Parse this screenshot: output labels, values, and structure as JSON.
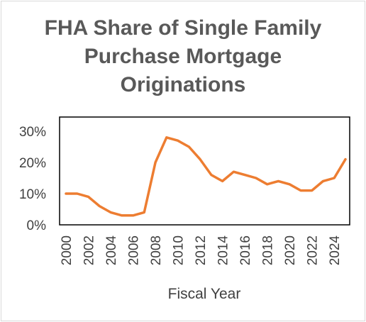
{
  "chart_data": {
    "type": "line",
    "title_lines": [
      "FHA Share of Single Family",
      "Purchase Mortgage",
      "Originations"
    ],
    "xlabel": "Fiscal Year",
    "ylabel": "",
    "x": [
      2000,
      2001,
      2002,
      2003,
      2004,
      2005,
      2006,
      2007,
      2008,
      2009,
      2010,
      2011,
      2012,
      2013,
      2014,
      2015,
      2016,
      2017,
      2018,
      2019,
      2020,
      2021,
      2022,
      2023,
      2024,
      2025
    ],
    "series": [
      {
        "values": [
          10,
          10,
          9,
          6,
          4,
          3,
          3,
          4,
          20,
          28,
          27,
          25,
          21,
          16,
          14,
          17,
          16,
          15,
          13,
          14,
          13,
          11,
          11,
          14,
          15,
          21
        ],
        "color": "#ED7D31"
      }
    ],
    "x_ticks": [
      "2000",
      "2002",
      "2004",
      "2006",
      "2008",
      "2010",
      "2012",
      "2014",
      "2016",
      "2018",
      "2020",
      "2022",
      "2024"
    ],
    "y_ticks": [
      "0%",
      "10%",
      "20%",
      "30%"
    ],
    "ylim": [
      0,
      30
    ],
    "grid": false,
    "legend": "none"
  }
}
